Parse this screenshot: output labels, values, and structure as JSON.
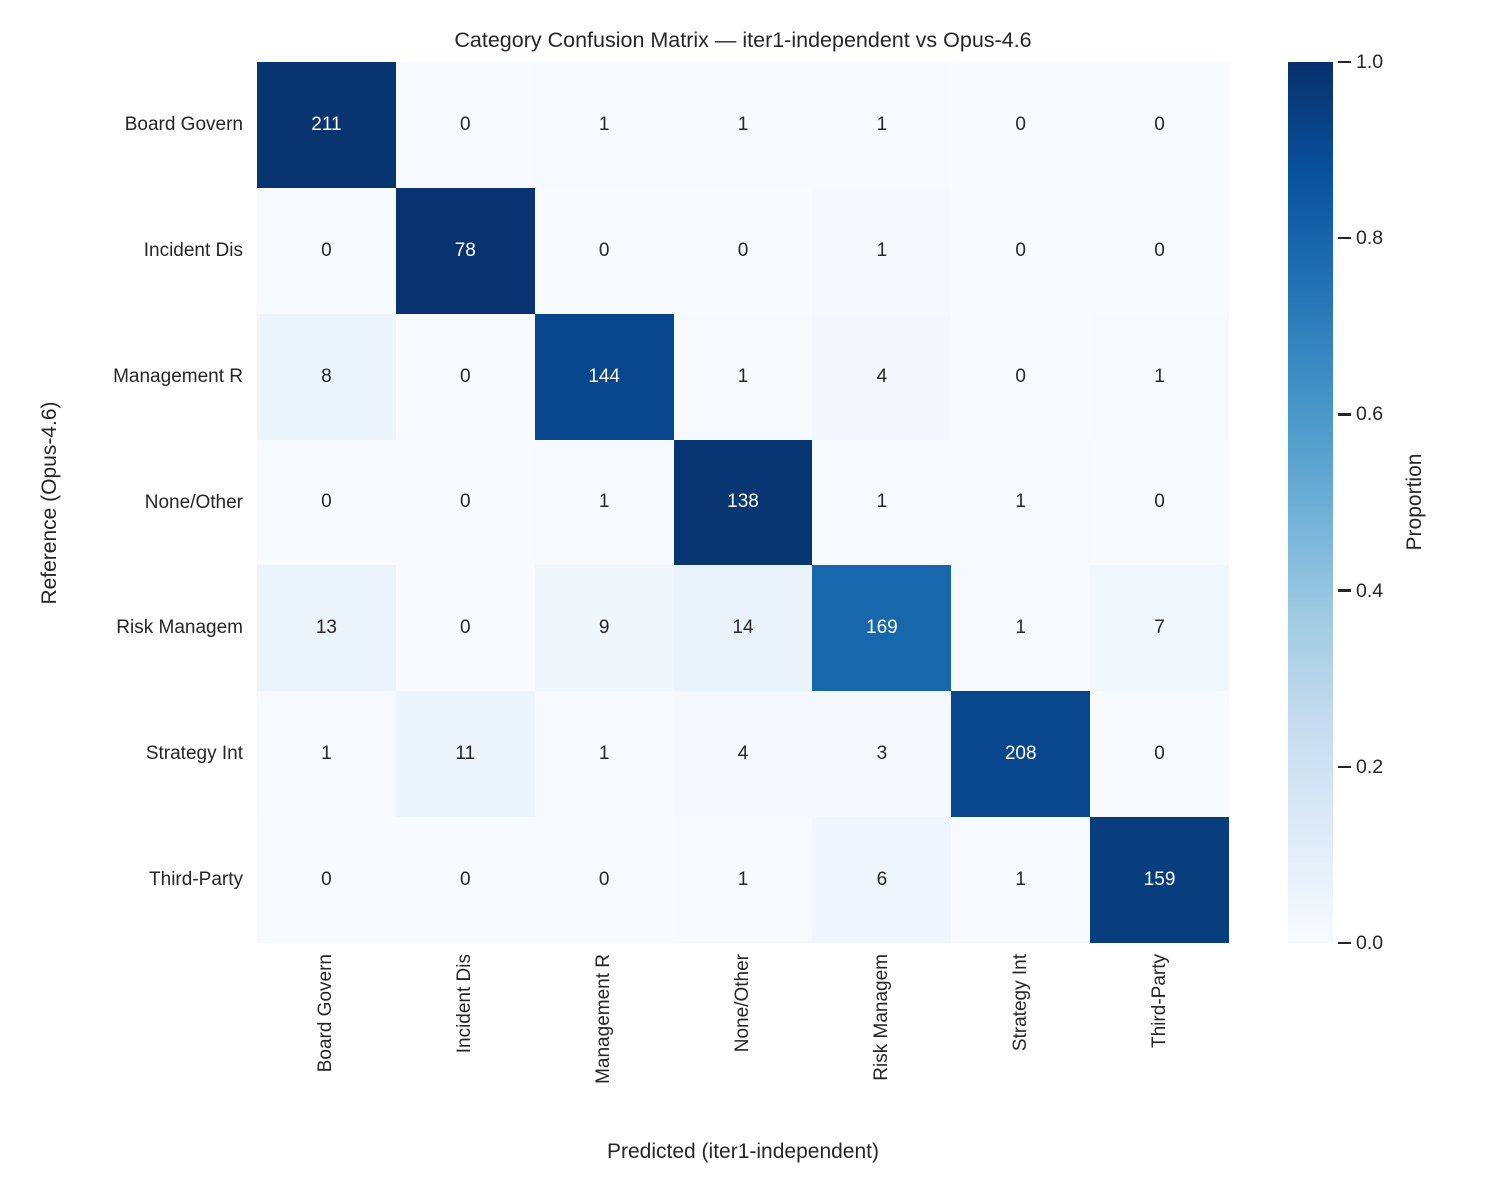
{
  "title": "Category Confusion Matrix — iter1-independent vs Opus-4.6",
  "x_axis_label": "Predicted (iter1-independent)",
  "y_axis_label": "Reference (Opus-4.6)",
  "colorbar": {
    "label": "Proportion",
    "ticks": [
      {
        "label": "1.0",
        "value": 1.0
      },
      {
        "label": "0.8",
        "value": 0.8
      },
      {
        "label": "0.6",
        "value": 0.6
      },
      {
        "label": "0.4",
        "value": 0.4
      },
      {
        "label": "0.2",
        "value": 0.2
      },
      {
        "label": "0.0",
        "value": 0.0
      }
    ]
  },
  "chart_data": {
    "type": "heatmap",
    "title": "Category Confusion Matrix — iter1-independent vs Opus-4.6",
    "xlabel": "Predicted (iter1-independent)",
    "ylabel": "Reference (Opus-4.6)",
    "categories": [
      "Board Govern",
      "Incident Dis",
      "Management R",
      "None/Other",
      "Risk Managem",
      "Strategy Int",
      "Third-Party"
    ],
    "matrix": [
      [
        211,
        0,
        1,
        1,
        1,
        0,
        0
      ],
      [
        0,
        78,
        0,
        0,
        1,
        0,
        0
      ],
      [
        8,
        0,
        144,
        1,
        4,
        0,
        1
      ],
      [
        0,
        0,
        1,
        138,
        1,
        1,
        0
      ],
      [
        13,
        0,
        9,
        14,
        169,
        1,
        7
      ],
      [
        1,
        11,
        1,
        4,
        3,
        208,
        0
      ],
      [
        0,
        0,
        0,
        1,
        6,
        1,
        159
      ]
    ],
    "normalization": "row-proportion",
    "color_scale_label": "Proportion",
    "color_scale_range": [
      0.0,
      1.0
    ],
    "colormap_name": "Blues",
    "colormap_stops": [
      "#f7fbff",
      "#deebf7",
      "#c6dbef",
      "#9ecae1",
      "#6baed6",
      "#4292c6",
      "#2171b5",
      "#08519c",
      "#08306b"
    ],
    "annotation_color_dark": "#262626",
    "annotation_color_light": "#ffffff",
    "grid": false,
    "legend_position": "right-colorbar",
    "xticks_rotation_deg": 90
  }
}
